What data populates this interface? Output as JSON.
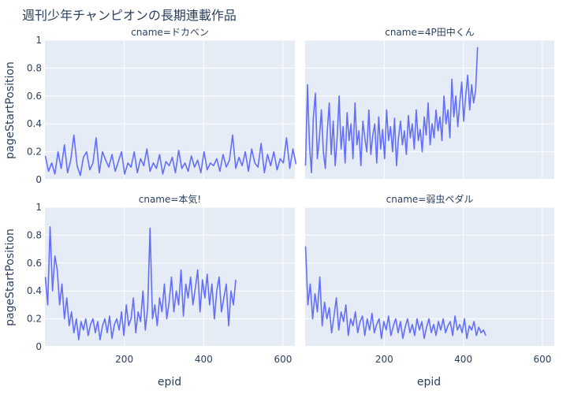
{
  "chart_data": {
    "type": "line",
    "title": "週刊少年チャンピオンの長期連載作品",
    "xlabel": "epid",
    "ylabel": "pageStartPosition",
    "xlim": [
      0,
      630
    ],
    "ylim": [
      0,
      1
    ],
    "xticks": [
      200,
      400,
      600
    ],
    "yticks": [
      0,
      0.2,
      0.4,
      0.6,
      0.8,
      1
    ],
    "ytick_labels": [
      "0",
      "0.2",
      "0.4",
      "0.6",
      "0.8",
      "1"
    ],
    "grid": true,
    "line_color": "#636efa",
    "panels": [
      {
        "label": "cname=ドカベン",
        "x_start": 1,
        "x_step": 8,
        "values": [
          0.17,
          0.06,
          0.12,
          0.04,
          0.2,
          0.08,
          0.25,
          0.05,
          0.14,
          0.32,
          0.1,
          0.03,
          0.16,
          0.2,
          0.07,
          0.12,
          0.3,
          0.05,
          0.2,
          0.14,
          0.09,
          0.18,
          0.06,
          0.13,
          0.2,
          0.04,
          0.12,
          0.09,
          0.2,
          0.05,
          0.15,
          0.1,
          0.22,
          0.06,
          0.12,
          0.08,
          0.18,
          0.04,
          0.13,
          0.1,
          0.16,
          0.05,
          0.21,
          0.08,
          0.12,
          0.06,
          0.17,
          0.09,
          0.14,
          0.05,
          0.2,
          0.07,
          0.12,
          0.1,
          0.15,
          0.06,
          0.18,
          0.09,
          0.14,
          0.32,
          0.08,
          0.16,
          0.1,
          0.2,
          0.06,
          0.22,
          0.12,
          0.09,
          0.26,
          0.05,
          0.18,
          0.1,
          0.2,
          0.07,
          0.15,
          0.12,
          0.3,
          0.08,
          0.22,
          0.11
        ]
      },
      {
        "label": "cname=4P田中くん",
        "x_start": 1,
        "x_step": 5,
        "values": [
          0.1,
          0.68,
          0.25,
          0.05,
          0.45,
          0.62,
          0.15,
          0.3,
          0.5,
          0.2,
          0.08,
          0.35,
          0.55,
          0.18,
          0.42,
          0.1,
          0.3,
          0.6,
          0.22,
          0.38,
          0.12,
          0.48,
          0.28,
          0.4,
          0.15,
          0.55,
          0.25,
          0.35,
          0.1,
          0.42,
          0.3,
          0.2,
          0.5,
          0.18,
          0.32,
          0.4,
          0.12,
          0.45,
          0.22,
          0.36,
          0.15,
          0.5,
          0.28,
          0.38,
          0.2,
          0.44,
          0.1,
          0.3,
          0.42,
          0.25,
          0.35,
          0.18,
          0.46,
          0.3,
          0.4,
          0.22,
          0.5,
          0.28,
          0.36,
          0.2,
          0.45,
          0.32,
          0.55,
          0.25,
          0.4,
          0.3,
          0.5,
          0.35,
          0.45,
          0.28,
          0.6,
          0.4,
          0.5,
          0.3,
          0.72,
          0.45,
          0.6,
          0.38,
          0.55,
          0.7,
          0.42,
          0.6,
          0.75,
          0.5,
          0.68,
          0.55,
          0.64,
          0.95
        ]
      },
      {
        "label": "cname=本気!",
        "x_start": 1,
        "x_step": 6,
        "values": [
          0.5,
          0.3,
          0.86,
          0.4,
          0.65,
          0.55,
          0.3,
          0.45,
          0.2,
          0.35,
          0.15,
          0.25,
          0.1,
          0.2,
          0.05,
          0.18,
          0.12,
          0.2,
          0.08,
          0.16,
          0.2,
          0.1,
          0.18,
          0.05,
          0.15,
          0.2,
          0.1,
          0.22,
          0.06,
          0.16,
          0.2,
          0.12,
          0.25,
          0.08,
          0.3,
          0.15,
          0.2,
          0.35,
          0.1,
          0.25,
          0.18,
          0.4,
          0.12,
          0.28,
          0.85,
          0.2,
          0.3,
          0.15,
          0.35,
          0.25,
          0.45,
          0.2,
          0.32,
          0.5,
          0.25,
          0.4,
          0.3,
          0.55,
          0.22,
          0.45,
          0.35,
          0.5,
          0.3,
          0.42,
          0.55,
          0.25,
          0.48,
          0.35,
          0.52,
          0.3,
          0.45,
          0.2,
          0.4,
          0.5,
          0.25,
          0.35,
          0.45,
          0.15,
          0.4,
          0.3,
          0.48
        ]
      },
      {
        "label": "cname=弱虫ペダル",
        "x_start": 1,
        "x_step": 6,
        "values": [
          0.72,
          0.3,
          0.45,
          0.2,
          0.38,
          0.25,
          0.5,
          0.15,
          0.32,
          0.2,
          0.28,
          0.1,
          0.22,
          0.35,
          0.12,
          0.25,
          0.18,
          0.3,
          0.08,
          0.2,
          0.15,
          0.25,
          0.1,
          0.18,
          0.22,
          0.08,
          0.2,
          0.12,
          0.24,
          0.1,
          0.16,
          0.2,
          0.06,
          0.18,
          0.12,
          0.22,
          0.08,
          0.15,
          0.2,
          0.1,
          0.18,
          0.06,
          0.14,
          0.2,
          0.1,
          0.16,
          0.08,
          0.2,
          0.12,
          0.18,
          0.06,
          0.14,
          0.2,
          0.1,
          0.16,
          0.08,
          0.18,
          0.12,
          0.2,
          0.1,
          0.15,
          0.18,
          0.08,
          0.22,
          0.12,
          0.16,
          0.1,
          0.2,
          0.06,
          0.15,
          0.12,
          0.18,
          0.08,
          0.14,
          0.1,
          0.12,
          0.08
        ]
      }
    ]
  }
}
